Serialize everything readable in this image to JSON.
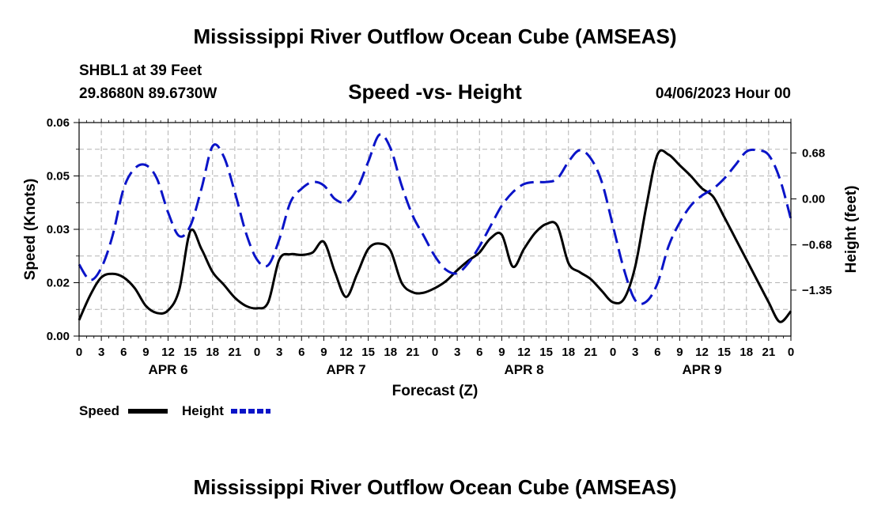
{
  "page_title": "Mississippi River Outflow Ocean Cube (AMSEAS)",
  "footer_title": "Mississippi River Outflow Ocean Cube (AMSEAS)",
  "station": {
    "name_depth": "SHBL1 at 39 Feet",
    "coordinates": "29.8680N  89.6730W"
  },
  "date_label": "04/06/2023 Hour 00",
  "colors": {
    "speed": "#000000",
    "height": "#0a14c8",
    "grid": "#b4b4b4"
  },
  "chart_data": {
    "type": "line",
    "title": "Speed -vs- Height",
    "xlabel": "Forecast (Z)",
    "ylabel_left": "Speed (Knots)",
    "ylabel_right": "Height (feet)",
    "x_range_hours": [
      0,
      96
    ],
    "y_left_range": [
      0,
      0.06
    ],
    "y_left_tick_values": [
      0,
      0.015,
      0.03,
      0.045,
      0.06
    ],
    "y_left_tick_labels": [
      "0.00",
      "0.02",
      "0.03",
      "0.05",
      "0.06"
    ],
    "y_right_range": [
      -2.03,
      1.13
    ],
    "y_right_tick_values": [
      -1.35,
      -0.68,
      0.0,
      0.68
    ],
    "y_right_tick_labels": [
      "−1.35",
      "−0.68",
      "0.00",
      "0.68"
    ],
    "x_tick_hours": [
      0,
      3,
      6,
      9,
      12,
      15,
      18,
      21,
      24,
      27,
      30,
      33,
      36,
      39,
      42,
      45,
      48,
      51,
      54,
      57,
      60,
      63,
      66,
      69,
      72,
      75,
      78,
      81,
      84,
      87,
      90,
      93,
      96
    ],
    "x_tick_labels": [
      "0",
      "3",
      "6",
      "9",
      "12",
      "15",
      "18",
      "21",
      "0",
      "3",
      "6",
      "9",
      "12",
      "15",
      "18",
      "21",
      "0",
      "3",
      "6",
      "9",
      "12",
      "15",
      "18",
      "21",
      "0",
      "3",
      "6",
      "9",
      "12",
      "15",
      "18",
      "21",
      "0"
    ],
    "day_labels": [
      {
        "label": "APR 6",
        "hour": 12
      },
      {
        "label": "APR 7",
        "hour": 36
      },
      {
        "label": "APR 8",
        "hour": 60
      },
      {
        "label": "APR 9",
        "hour": 84
      }
    ],
    "grid": true,
    "series": [
      {
        "name": "Speed",
        "axis": "left",
        "style": "solid",
        "x": [
          0,
          1.5,
          3,
          4.5,
          6,
          7.5,
          9,
          10.5,
          12,
          13.5,
          15,
          16.5,
          18,
          19.5,
          21,
          22.5,
          24,
          25.5,
          27,
          28.5,
          30,
          31.5,
          33,
          34.5,
          36,
          37.5,
          39,
          40.5,
          42,
          43.5,
          45,
          46.5,
          48,
          49.5,
          51,
          52.5,
          54,
          55.5,
          57,
          58.5,
          60,
          61.5,
          63,
          64.5,
          66,
          67.5,
          69,
          70.5,
          72,
          73.5,
          75,
          76.5,
          78,
          79.5,
          81,
          82.5,
          84,
          85.5,
          87,
          88.5,
          90,
          91.5,
          93,
          94.5,
          96
        ],
        "values": [
          0.0045,
          0.0115,
          0.0165,
          0.0175,
          0.0165,
          0.0135,
          0.0085,
          0.0065,
          0.0072,
          0.013,
          0.0295,
          0.0245,
          0.018,
          0.0145,
          0.0108,
          0.0085,
          0.0078,
          0.0095,
          0.0215,
          0.023,
          0.0228,
          0.0235,
          0.0265,
          0.018,
          0.011,
          0.0175,
          0.0245,
          0.026,
          0.024,
          0.015,
          0.0123,
          0.0122,
          0.0135,
          0.0155,
          0.0185,
          0.0212,
          0.0235,
          0.0275,
          0.0285,
          0.0195,
          0.0245,
          0.029,
          0.0315,
          0.031,
          0.0205,
          0.018,
          0.016,
          0.0127,
          0.0095,
          0.0105,
          0.0195,
          0.0365,
          0.051,
          0.051,
          0.048,
          0.045,
          0.0415,
          0.0392,
          0.0335,
          0.0275,
          0.0215,
          0.0155,
          0.0095,
          0.004,
          0.007
        ]
      },
      {
        "name": "Height",
        "axis": "right",
        "style": "dashed",
        "x": [
          0,
          1.5,
          3,
          4.5,
          6,
          7.5,
          9,
          10.5,
          12,
          13.5,
          15,
          16.5,
          18,
          19.5,
          21,
          22.5,
          24,
          25.5,
          27,
          28.5,
          30,
          31.5,
          33,
          34.5,
          36,
          37.5,
          39,
          40.5,
          42,
          43.5,
          45,
          46.5,
          48,
          49.5,
          51,
          52.5,
          54,
          55.5,
          57,
          58.5,
          60,
          61.5,
          63,
          64.5,
          66,
          67.5,
          69,
          70.5,
          72,
          73.5,
          75,
          76.5,
          78,
          79.5,
          81,
          82.5,
          84,
          85.5,
          87,
          88.5,
          90,
          91.5,
          93,
          94.5,
          96
        ],
        "values": [
          -0.97,
          -1.2,
          -1.02,
          -0.55,
          0.15,
          0.45,
          0.5,
          0.3,
          -0.2,
          -0.55,
          -0.4,
          0.15,
          0.78,
          0.63,
          0.1,
          -0.5,
          -0.9,
          -0.98,
          -0.6,
          -0.05,
          0.15,
          0.25,
          0.2,
          0.0,
          -0.05,
          0.15,
          0.55,
          0.95,
          0.75,
          0.2,
          -0.25,
          -0.55,
          -0.85,
          -1.05,
          -1.1,
          -0.95,
          -0.7,
          -0.4,
          -0.1,
          0.1,
          0.22,
          0.25,
          0.25,
          0.3,
          0.55,
          0.72,
          0.6,
          0.25,
          -0.4,
          -1.05,
          -1.5,
          -1.52,
          -1.25,
          -0.7,
          -0.35,
          -0.1,
          0.05,
          0.15,
          0.3,
          0.5,
          0.7,
          0.72,
          0.65,
          0.3,
          -0.3
        ]
      }
    ]
  },
  "legend": {
    "speed_label": "Speed",
    "height_label": "Height"
  }
}
